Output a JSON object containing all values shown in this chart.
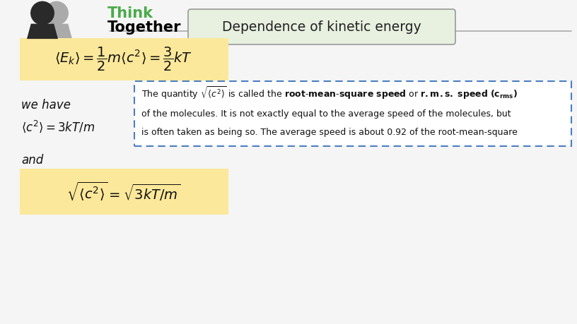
{
  "title": "Dependence of kinetic energy",
  "think_text": "Think",
  "together_text": "Together",
  "think_color": "#4aaa4a",
  "together_color": "#000000",
  "bg_color": "#f5f5f5",
  "formula1_bg": "#fce89a",
  "formula2_bg": "#fce89a",
  "header_box_bg": "#e8f0e0",
  "header_box_edge": "#999999",
  "dashed_box_edge": "#4a7fc1",
  "we_have_text": "we have",
  "and_text": "and",
  "eq1_text": "$\\langle E_k \\rangle = \\dfrac{1}{2} m \\langle c^2 \\rangle = \\dfrac{3}{2} kT$",
  "eq2_text": "$\\langle c^2 \\rangle = 3kT/m$",
  "eq3_text": "$\\sqrt{\\langle c^2 \\rangle} = \\sqrt{3kT/m}$",
  "info_line1": "The quantity $\\sqrt{\\langle c^2 \\rangle}$ is called the $\\mathbf{root\\text{-}mean\\text{-}square\\ speed}$ or $\\mathbf{r.m.s.\\ speed\\ (}$$\\mathbf{c}_{\\mathbf{rms}}$$\\mathbf{)}$",
  "info_line2": "of the molecules. It is not exactly equal to the average speed of the molecules, but",
  "info_line3": "is often taken as being so. The average speed is about 0.92 of the root-mean-square"
}
